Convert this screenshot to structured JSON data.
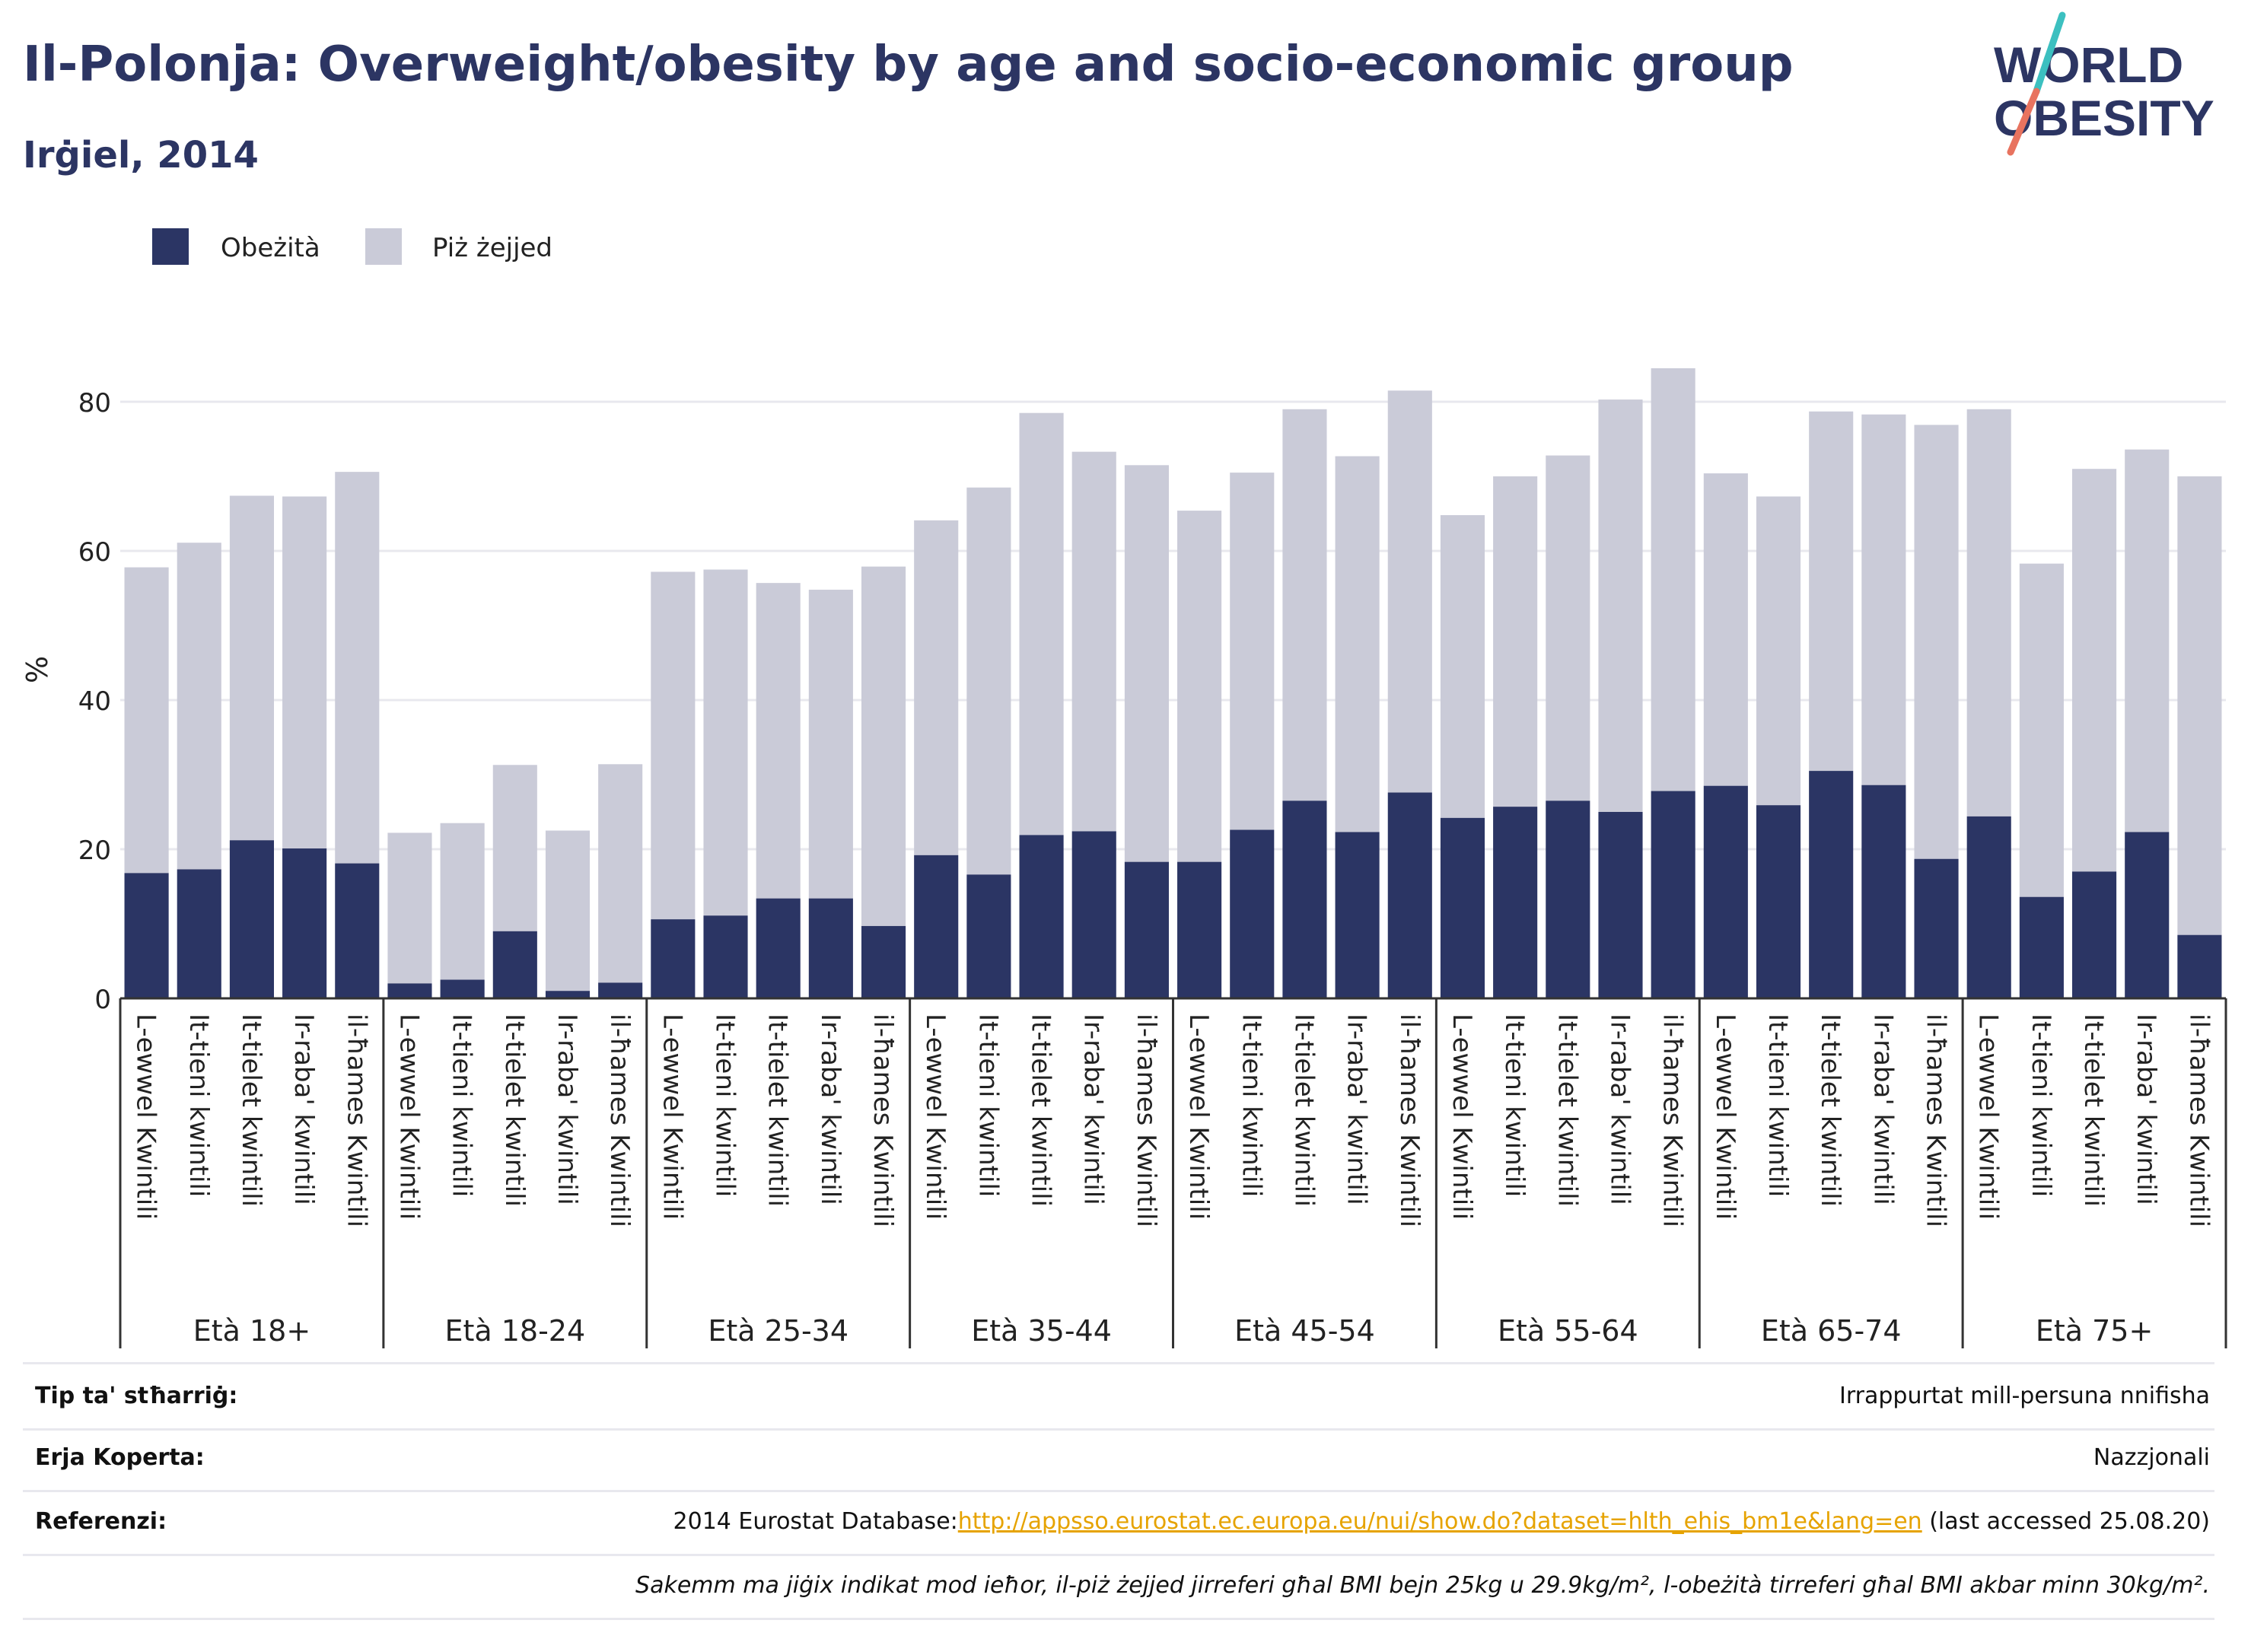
{
  "header": {
    "title": "Il-Polonja: Overweight/obesity by age and socio-economic group",
    "subtitle": "Irġiel, 2014"
  },
  "logo": {
    "line1": "WORLD",
    "line2": "OBESITY"
  },
  "colors": {
    "obesity": "#2b3564",
    "overweight": "#cacbd8",
    "title": "#2c3563",
    "link": "#e6a300"
  },
  "chart_data": {
    "type": "bar",
    "stacked": true,
    "ylabel": "%",
    "ylim": [
      0,
      90
    ],
    "yticks": [
      0,
      20,
      40,
      60,
      80
    ],
    "grid": true,
    "legend_position": "top-left",
    "series": [
      {
        "name": "Obeżità",
        "color": "#2b3564"
      },
      {
        "name": "Piż żejjed",
        "color": "#cacbd8"
      }
    ],
    "quintiles": [
      "L-ewwel Kwintili",
      "It-tieni kwintili",
      "It-tielet kwintili",
      "Ir-raba' kwintili",
      "il-ħames Kwintili"
    ],
    "groups": [
      {
        "label": "Età 18+",
        "obesity": [
          16.8,
          17.3,
          21.2,
          20.1,
          18.1
        ],
        "total": [
          57.8,
          61.1,
          67.4,
          67.3,
          70.6
        ]
      },
      {
        "label": "Età 18-24",
        "obesity": [
          2.0,
          2.5,
          9.0,
          1.0,
          2.1
        ],
        "total": [
          22.2,
          23.5,
          31.3,
          22.5,
          31.4
        ]
      },
      {
        "label": "Età 25-34",
        "obesity": [
          10.6,
          11.1,
          13.4,
          13.4,
          9.7
        ],
        "total": [
          57.2,
          57.5,
          55.7,
          54.8,
          57.9
        ]
      },
      {
        "label": "Età 35-44",
        "obesity": [
          19.2,
          16.6,
          21.9,
          22.4,
          18.3
        ],
        "total": [
          64.1,
          68.5,
          78.5,
          73.3,
          71.5
        ]
      },
      {
        "label": "Età 45-54",
        "obesity": [
          18.3,
          22.6,
          26.5,
          22.3,
          27.6
        ],
        "total": [
          65.4,
          70.5,
          79.0,
          72.7,
          81.5
        ]
      },
      {
        "label": "Età 55-64",
        "obesity": [
          24.2,
          25.7,
          26.5,
          25.0,
          27.8
        ],
        "total": [
          64.8,
          70.0,
          72.8,
          80.3,
          84.5
        ]
      },
      {
        "label": "Età 65-74",
        "obesity": [
          28.5,
          25.9,
          30.5,
          28.6,
          18.7
        ],
        "total": [
          70.4,
          67.3,
          78.7,
          78.3,
          76.9
        ]
      },
      {
        "label": "Età 75+",
        "obesity": [
          24.4,
          13.6,
          17.0,
          22.3,
          8.5
        ],
        "total": [
          79.0,
          58.3,
          71.0,
          73.6,
          70.0
        ]
      }
    ]
  },
  "footer": {
    "rows": [
      {
        "label": "Tip ta' stħarriġ:",
        "value": "Irrappurtat mill-persuna nnifisha"
      },
      {
        "label": "Erja Koperta:",
        "value": "Nazzjonali"
      },
      {
        "label": "Referenzi:",
        "value_prefix": "2014 Eurostat Database:",
        "link": "http://appsso.eurostat.ec.europa.eu/nui/show.do?dataset=hlth_ehis_bm1e&lang=en",
        "value_suffix": " (last accessed 25.08.20)"
      }
    ],
    "note": "Sakemm ma jiġix indikat mod ieħor, il-piż żejjed jirreferi għal BMI bejn 25kg u 29.9kg/m², l-obeżità tirreferi għal BMI akbar minn 30kg/m²."
  }
}
